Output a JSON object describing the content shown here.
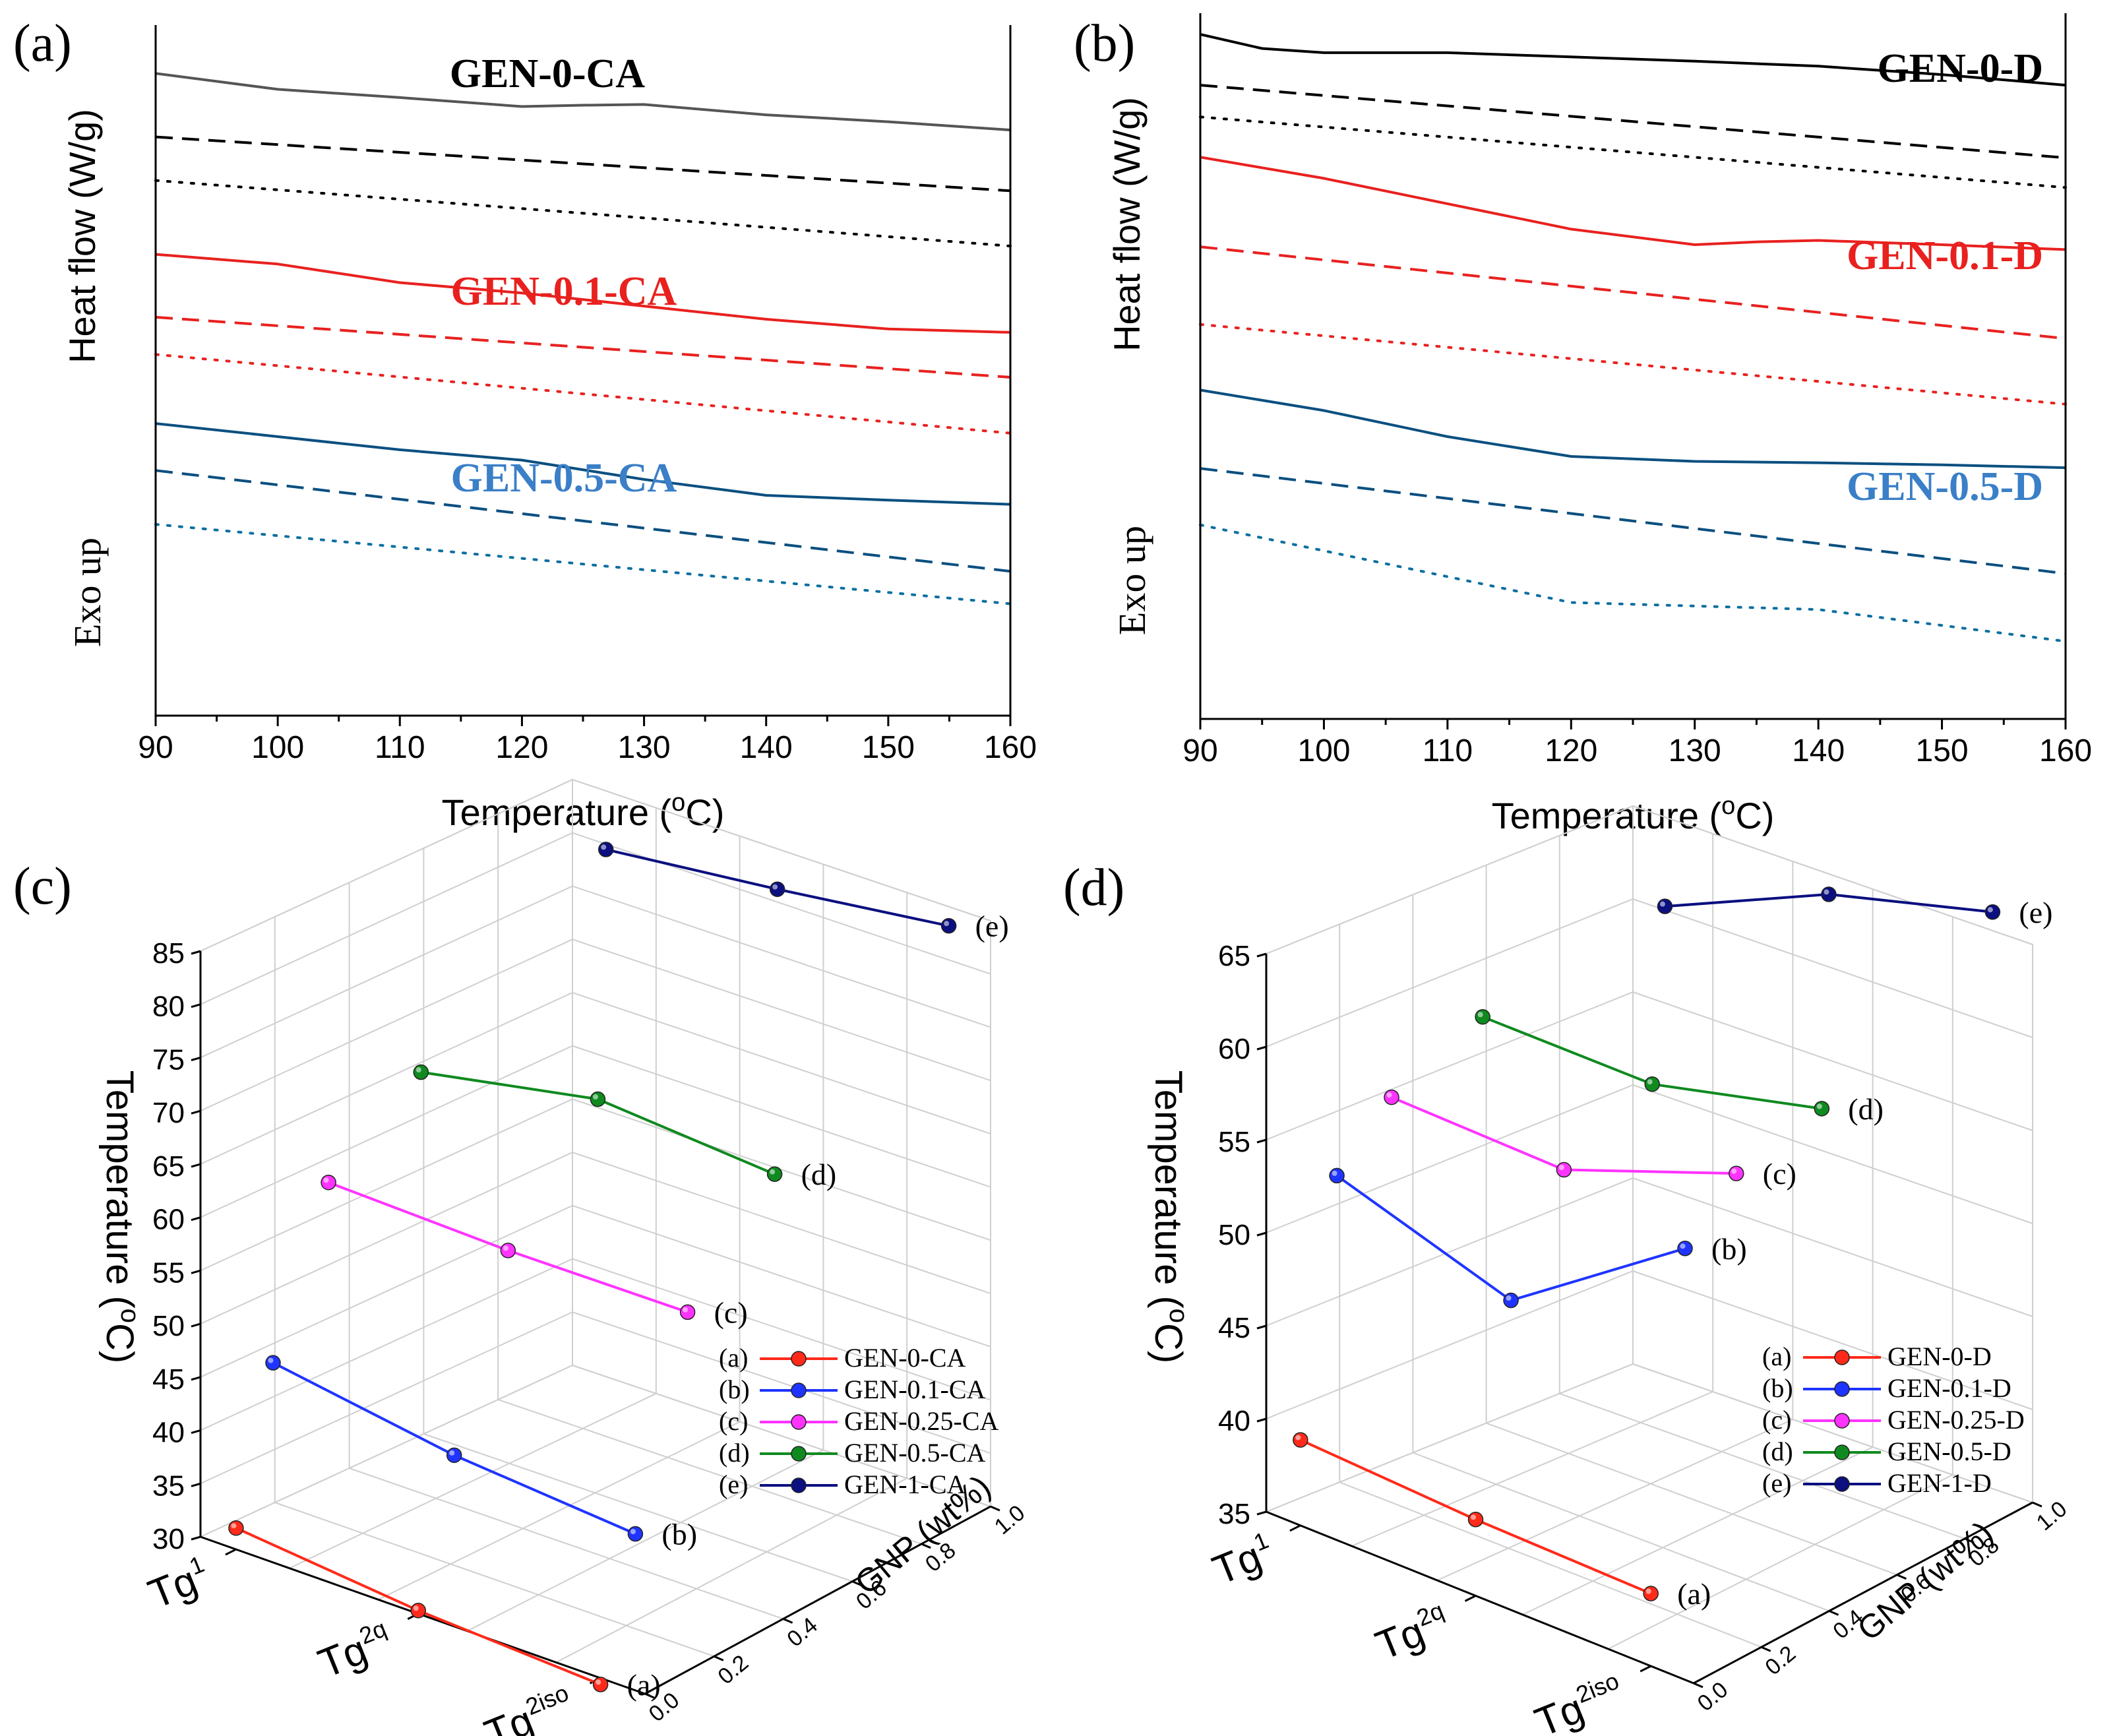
{
  "chart_data": [
    {
      "panel": "(a)",
      "type": "line",
      "title": "",
      "xlabel": "Temperature (",
      "xlabel_sup": "o",
      "xlabel_end": "C)",
      "ylabel": "Heat flow (W/g)",
      "ylabel2": "Exo up",
      "xlim": [
        90,
        160
      ],
      "xticks": [
        "90",
        "100",
        "110",
        "120",
        "130",
        "140",
        "150",
        "160"
      ],
      "annotations": [
        {
          "text": "GEN-0-CA",
          "color": "#000000"
        },
        {
          "text": "GEN-0.1-CA",
          "color": "#e8211f"
        },
        {
          "text": "GEN-0.5-CA",
          "color": "#3a7fc7"
        }
      ],
      "series": [
        {
          "name": "GEN-0-CA solid",
          "color": "#555555",
          "dash": "solid",
          "x": [
            90,
            100,
            110,
            120,
            125,
            130,
            140,
            150,
            160
          ],
          "y": [
            0.93,
            0.907,
            0.895,
            0.882,
            0.884,
            0.885,
            0.87,
            0.86,
            0.848
          ]
        },
        {
          "name": "GEN-0-CA dashed",
          "color": "#000000",
          "dash": "dash",
          "x": [
            90,
            160
          ],
          "y": [
            0.838,
            0.76
          ]
        },
        {
          "name": "GEN-0-CA dotted",
          "color": "#000000",
          "dash": "dot",
          "x": [
            90,
            160
          ],
          "y": [
            0.775,
            0.68
          ]
        },
        {
          "name": "GEN-0.1-CA solid",
          "color": "#e8211f",
          "dash": "solid",
          "x": [
            90,
            100,
            110,
            120,
            130,
            140,
            150,
            160
          ],
          "y": [
            0.668,
            0.654,
            0.627,
            0.612,
            0.593,
            0.574,
            0.56,
            0.555
          ]
        },
        {
          "name": "GEN-0.1-CA dashed",
          "color": "#e8211f",
          "dash": "dash",
          "x": [
            90,
            160
          ],
          "y": [
            0.577,
            0.49
          ]
        },
        {
          "name": "GEN-0.1-CA dotted",
          "color": "#e8211f",
          "dash": "dot",
          "x": [
            90,
            160
          ],
          "y": [
            0.523,
            0.409
          ]
        },
        {
          "name": "GEN-0.5-CA solid",
          "color": "#0b4f80",
          "dash": "solid",
          "x": [
            90,
            100,
            110,
            120,
            130,
            140,
            150,
            160
          ],
          "y": [
            0.423,
            0.404,
            0.385,
            0.37,
            0.342,
            0.319,
            0.312,
            0.306
          ]
        },
        {
          "name": "GEN-0.5-CA dashed",
          "color": "#0b4f80",
          "dash": "dash",
          "x": [
            90,
            160
          ],
          "y": [
            0.355,
            0.209
          ]
        },
        {
          "name": "GEN-0.5-CA dotted",
          "color": "#0b6fa0",
          "dash": "dot",
          "x": [
            90,
            160
          ],
          "y": [
            0.277,
            0.162
          ]
        }
      ]
    },
    {
      "panel": "(b)",
      "type": "line",
      "title": "",
      "xlabel": "Temperature (",
      "xlabel_sup": "o",
      "xlabel_end": "C)",
      "ylabel": "Heat flow (W/g)",
      "ylabel2": "Exo up",
      "xlim": [
        90,
        160
      ],
      "xticks": [
        "90",
        "100",
        "110",
        "120",
        "130",
        "140",
        "150",
        "160"
      ],
      "annotations": [
        {
          "text": "GEN-0-D",
          "color": "#000000"
        },
        {
          "text": "GEN-0.1-D",
          "color": "#e8211f"
        },
        {
          "text": "GEN-0.5-D",
          "color": "#3a7fc7"
        }
      ],
      "series": [
        {
          "name": "GEN-0-D solid",
          "color": "#000000",
          "dash": "solid",
          "x": [
            90,
            95,
            100,
            110,
            120,
            130,
            140,
            150,
            160
          ],
          "y": [
            0.97,
            0.95,
            0.944,
            0.944,
            0.938,
            0.932,
            0.925,
            0.913,
            0.898
          ]
        },
        {
          "name": "GEN-0-D dashed",
          "color": "#000000",
          "dash": "dash",
          "x": [
            90,
            160
          ],
          "y": [
            0.898,
            0.795
          ]
        },
        {
          "name": "GEN-0-D dotted",
          "color": "#000000",
          "dash": "dot",
          "x": [
            90,
            160
          ],
          "y": [
            0.853,
            0.753
          ]
        },
        {
          "name": "GEN-0.1-D solid",
          "color": "#e8211f",
          "dash": "solid",
          "x": [
            90,
            100,
            110,
            120,
            130,
            135,
            140,
            150,
            160
          ],
          "y": [
            0.796,
            0.766,
            0.73,
            0.694,
            0.672,
            0.676,
            0.678,
            0.672,
            0.665
          ]
        },
        {
          "name": "GEN-0.1-D dashed",
          "color": "#e8211f",
          "dash": "dash",
          "x": [
            90,
            160
          ],
          "y": [
            0.669,
            0.539
          ]
        },
        {
          "name": "GEN-0.1-D dotted",
          "color": "#e8211f",
          "dash": "dot",
          "x": [
            90,
            160
          ],
          "y": [
            0.559,
            0.446
          ]
        },
        {
          "name": "GEN-0.5-D solid",
          "color": "#0b4f80",
          "dash": "solid",
          "x": [
            90,
            100,
            110,
            120,
            130,
            140,
            150,
            160
          ],
          "y": [
            0.466,
            0.437,
            0.4,
            0.372,
            0.365,
            0.363,
            0.36,
            0.356
          ]
        },
        {
          "name": "GEN-0.5-D dashed",
          "color": "#0b4f80",
          "dash": "dash",
          "x": [
            90,
            160
          ],
          "y": [
            0.355,
            0.206
          ]
        },
        {
          "name": "GEN-0.5-D dotted",
          "color": "#0b6fa0",
          "dash": "dot",
          "x": [
            90,
            120,
            130,
            140,
            160
          ],
          "y": [
            0.275,
            0.165,
            0.16,
            0.155,
            0.11
          ]
        }
      ]
    },
    {
      "panel": "(c)",
      "type": "scatter3d",
      "title": "",
      "zlabel": "Temperature (",
      "zlabel_sup": "o",
      "zlabel_end": "C)",
      "ylabel": "GNP (wt%)",
      "xcats": [
        "Tg1",
        "Tg2q",
        "Tg2iso"
      ],
      "zlim": [
        30,
        85
      ],
      "zticks": [
        "30",
        "35",
        "40",
        "45",
        "50",
        "55",
        "60",
        "65",
        "70",
        "75",
        "80",
        "85"
      ],
      "yticks": [
        "0.0",
        "0.2",
        "0.4",
        "0.6",
        "0.8",
        "1.0"
      ],
      "legend": [
        {
          "key": "(a)",
          "name": "GEN-0-CA",
          "color": "#ff2a1a"
        },
        {
          "key": "(b)",
          "name": "GEN-0.1-CA",
          "color": "#1f35ff"
        },
        {
          "key": "(c)",
          "name": "GEN-0.25-CA",
          "color": "#ff33ff"
        },
        {
          "key": "(d)",
          "name": "GEN-0.5-CA",
          "color": "#0f8a1f"
        },
        {
          "key": "(e)",
          "name": "GEN-1-CA",
          "color": "#0b0f80"
        }
      ],
      "series": [
        {
          "label": "(a)",
          "name": "GEN-0-CA",
          "gnp": 0.0,
          "values": [
            32.0,
            30.3,
            29.4
          ]
        },
        {
          "label": "(b)",
          "name": "GEN-0.1-CA",
          "gnp": 0.1,
          "values": [
            45.9,
            43.2,
            41.8
          ]
        },
        {
          "label": "(c)",
          "name": "GEN-0.25-CA",
          "gnp": 0.25,
          "values": [
            60.4,
            59.9,
            60.0
          ]
        },
        {
          "label": "(d)",
          "name": "GEN-0.5-CA",
          "gnp": 0.5,
          "values": [
            66.7,
            69.9,
            68.6
          ]
        },
        {
          "label": "(e)",
          "name": "GEN-1-CA",
          "gnp": 1.0,
          "values": [
            79.5,
            81.2,
            83.2
          ]
        }
      ]
    },
    {
      "panel": "(d)",
      "type": "scatter3d",
      "title": "",
      "zlabel": "Temperature (",
      "zlabel_sup": "o",
      "zlabel_end": "C)",
      "ylabel": "GNP (wt%)",
      "xcats": [
        "Tg1",
        "Tg2q",
        "Tg2iso"
      ],
      "zlim": [
        35,
        65
      ],
      "zticks": [
        "35",
        "40",
        "45",
        "50",
        "55",
        "60",
        "65"
      ],
      "yticks": [
        "0.0",
        "0.2",
        "0.4",
        "0.6",
        "0.8",
        "1.0"
      ],
      "legend": [
        {
          "key": "(a)",
          "name": "GEN-0-D",
          "color": "#ff2a1a"
        },
        {
          "key": "(b)",
          "name": "GEN-0.1-D",
          "color": "#1f35ff"
        },
        {
          "key": "(c)",
          "name": "GEN-0.25-D",
          "color": "#ff33ff"
        },
        {
          "key": "(d)",
          "name": "GEN-0.5-D",
          "color": "#0f8a1f"
        },
        {
          "key": "(e)",
          "name": "GEN-1-D",
          "color": "#0b0f80"
        }
      ],
      "series": [
        {
          "label": "(a)",
          "name": "GEN-0-D",
          "gnp": 0.0,
          "values": [
            39.6,
            39.1,
            38.9
          ]
        },
        {
          "label": "(b)",
          "name": "GEN-0.1-D",
          "gnp": 0.1,
          "values": [
            53.0,
            50.0,
            56.5
          ]
        },
        {
          "label": "(c)",
          "name": "GEN-0.25-D",
          "gnp": 0.25,
          "values": [
            56.0,
            55.7,
            59.1
          ]
        },
        {
          "label": "(d)",
          "name": "GEN-0.5-D",
          "gnp": 0.5,
          "values": [
            58.3,
            58.1,
            60.2
          ]
        },
        {
          "label": "(e)",
          "name": "GEN-1-D",
          "gnp": 1.0,
          "values": [
            60.2,
            63.9,
            66.0
          ]
        }
      ]
    }
  ]
}
